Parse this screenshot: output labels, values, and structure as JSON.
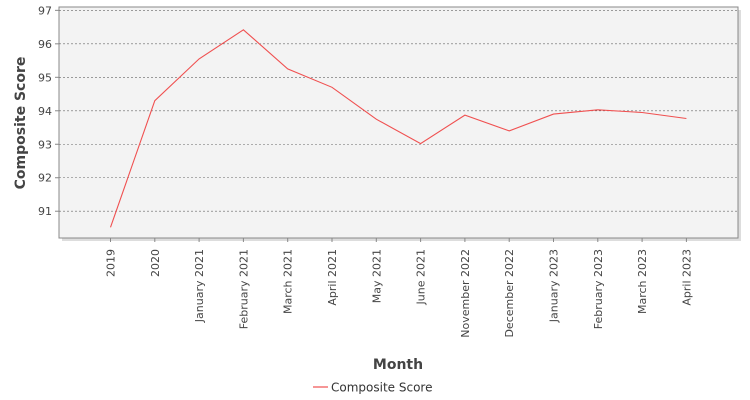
{
  "chart_data": {
    "type": "line",
    "categories": [
      "2019",
      "2020",
      "January 2021",
      "February 2021",
      "March 2021",
      "April 2021",
      "May 2021",
      "June 2021",
      "November 2022",
      "December 2022",
      "January 2023",
      "February 2023",
      "March 2023",
      "April 2023"
    ],
    "series": [
      {
        "name": "Composite Score",
        "values": [
          90.52,
          94.3,
          95.55,
          96.42,
          95.25,
          94.7,
          93.75,
          93.02,
          93.87,
          93.4,
          93.9,
          94.03,
          93.95,
          93.77
        ],
        "color": "#f05050"
      }
    ],
    "xlabel": "Month",
    "ylabel": "Composite Score",
    "ylim": [
      90.2,
      97.1
    ],
    "yticks": [
      91,
      92,
      93,
      94,
      95,
      96,
      97
    ],
    "grid": true,
    "legend_position": "bottom-center",
    "plot_background": "#f3f3f3"
  }
}
